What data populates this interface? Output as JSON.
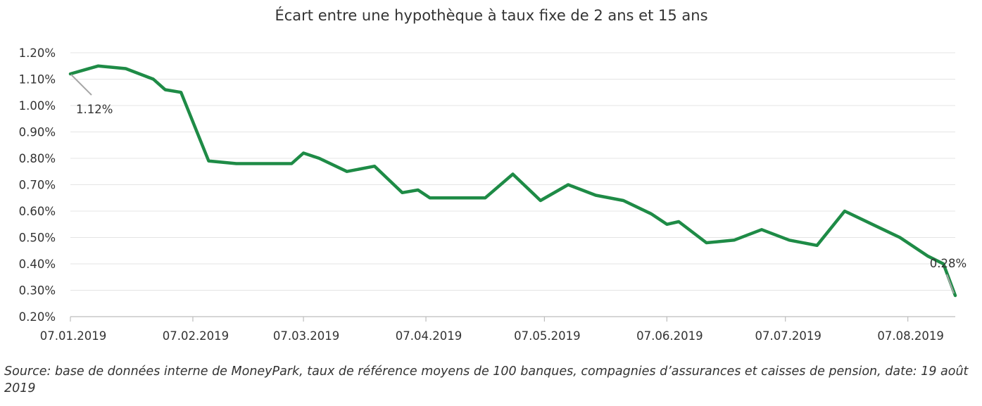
{
  "chart_data": {
    "type": "line",
    "title": "Écart entre une hypothèque à taux fixe de 2 ans et 15 ans",
    "xlabel": "",
    "ylabel": "",
    "ylim": [
      0.2,
      1.2
    ],
    "y_ticks": [
      "1.20%",
      "1.10%",
      "1.00%",
      "0.90%",
      "0.80%",
      "0.70%",
      "0.60%",
      "0.50%",
      "0.40%",
      "0.30%",
      "0.20%"
    ],
    "x_range": [
      "2019-01-07",
      "2019-08-19"
    ],
    "x_ticks": [
      {
        "date": "2019-01-07",
        "label": "07.01.2019"
      },
      {
        "date": "2019-02-07",
        "label": "07.02.2019"
      },
      {
        "date": "2019-03-07",
        "label": "07.03.2019"
      },
      {
        "date": "2019-04-07",
        "label": "07.04.2019"
      },
      {
        "date": "2019-05-07",
        "label": "07.05.2019"
      },
      {
        "date": "2019-06-07",
        "label": "07.06.2019"
      },
      {
        "date": "2019-07-07",
        "label": "07.07.2019"
      },
      {
        "date": "2019-08-07",
        "label": "07.08.2019"
      }
    ],
    "grid": true,
    "legend": "none",
    "series": [
      {
        "color": "#1e8b46",
        "points": [
          {
            "x": "2019-01-07",
            "y": 1.12
          },
          {
            "x": "2019-01-14",
            "y": 1.15
          },
          {
            "x": "2019-01-21",
            "y": 1.14
          },
          {
            "x": "2019-01-28",
            "y": 1.1
          },
          {
            "x": "2019-01-31",
            "y": 1.06
          },
          {
            "x": "2019-02-04",
            "y": 1.05
          },
          {
            "x": "2019-02-11",
            "y": 0.79
          },
          {
            "x": "2019-02-18",
            "y": 0.78
          },
          {
            "x": "2019-02-25",
            "y": 0.78
          },
          {
            "x": "2019-03-04",
            "y": 0.78
          },
          {
            "x": "2019-03-07",
            "y": 0.82
          },
          {
            "x": "2019-03-11",
            "y": 0.8
          },
          {
            "x": "2019-03-18",
            "y": 0.75
          },
          {
            "x": "2019-03-25",
            "y": 0.77
          },
          {
            "x": "2019-04-01",
            "y": 0.67
          },
          {
            "x": "2019-04-05",
            "y": 0.68
          },
          {
            "x": "2019-04-08",
            "y": 0.65
          },
          {
            "x": "2019-04-15",
            "y": 0.65
          },
          {
            "x": "2019-04-22",
            "y": 0.65
          },
          {
            "x": "2019-04-29",
            "y": 0.74
          },
          {
            "x": "2019-05-06",
            "y": 0.64
          },
          {
            "x": "2019-05-13",
            "y": 0.7
          },
          {
            "x": "2019-05-20",
            "y": 0.66
          },
          {
            "x": "2019-05-27",
            "y": 0.64
          },
          {
            "x": "2019-06-03",
            "y": 0.59
          },
          {
            "x": "2019-06-07",
            "y": 0.55
          },
          {
            "x": "2019-06-10",
            "y": 0.56
          },
          {
            "x": "2019-06-17",
            "y": 0.48
          },
          {
            "x": "2019-06-24",
            "y": 0.49
          },
          {
            "x": "2019-07-01",
            "y": 0.53
          },
          {
            "x": "2019-07-08",
            "y": 0.49
          },
          {
            "x": "2019-07-15",
            "y": 0.47
          },
          {
            "x": "2019-07-22",
            "y": 0.6
          },
          {
            "x": "2019-07-29",
            "y": 0.55
          },
          {
            "x": "2019-08-05",
            "y": 0.5
          },
          {
            "x": "2019-08-12",
            "y": 0.43
          },
          {
            "x": "2019-08-16",
            "y": 0.4
          },
          {
            "x": "2019-08-19",
            "y": 0.28
          }
        ]
      }
    ],
    "annotations": [
      {
        "label": "1.12%",
        "x": "2019-01-07",
        "y": 1.12
      },
      {
        "label": "0.28%",
        "x": "2019-08-19",
        "y": 0.28
      }
    ],
    "source": "Source: base de données interne de MoneyPark, taux de référence moyens de 100 banques, compagnies d’assurances et caisses de pension, date: 19 août 2019"
  }
}
